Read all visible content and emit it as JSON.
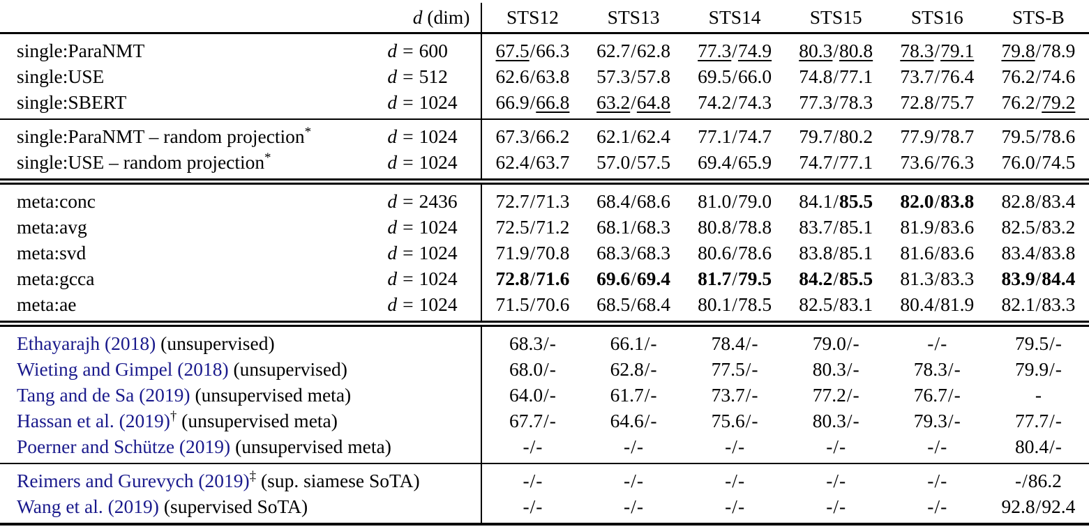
{
  "colors": {
    "citation_link": "#1a1a8c",
    "text": "#000000"
  },
  "header": {
    "dim_var": "d",
    "dim_rest": " (dim)",
    "dim_eq": "=",
    "sep": "/",
    "columns": [
      "STS12",
      "STS13",
      "STS14",
      "STS15",
      "STS16",
      "STS-B"
    ]
  },
  "groups": [
    {
      "name": "group-single-models",
      "rule": "none",
      "rows": [
        {
          "label": "single:ParaNMT",
          "dim": "600",
          "cells": [
            {
              "a": "67.5",
              "b": "66.3",
              "ua": true
            },
            {
              "a": "62.7",
              "b": "62.8"
            },
            {
              "a": "77.3",
              "b": "74.9",
              "ua": true,
              "ub": true
            },
            {
              "a": "80.3",
              "b": "80.8",
              "ua": true,
              "ub": true
            },
            {
              "a": "78.3",
              "b": "79.1",
              "ua": true,
              "ub": true
            },
            {
              "a": "79.8",
              "b": "78.9",
              "ua": true
            }
          ]
        },
        {
          "label": "single:USE",
          "dim": "512",
          "cells": [
            {
              "a": "62.6",
              "b": "63.8"
            },
            {
              "a": "57.3",
              "b": "57.8"
            },
            {
              "a": "69.5",
              "b": "66.0"
            },
            {
              "a": "74.8",
              "b": "77.1"
            },
            {
              "a": "73.7",
              "b": "76.4"
            },
            {
              "a": "76.2",
              "b": "74.6"
            }
          ]
        },
        {
          "label": "single:SBERT",
          "dim": "1024",
          "cells": [
            {
              "a": "66.9",
              "b": "66.8",
              "ub": true
            },
            {
              "a": "63.2",
              "b": "64.8",
              "ua": true,
              "ub": true
            },
            {
              "a": "74.2",
              "b": "74.3"
            },
            {
              "a": "77.3",
              "b": "78.3"
            },
            {
              "a": "72.8",
              "b": "75.7"
            },
            {
              "a": "76.2",
              "b": "79.2",
              "ub": true
            }
          ]
        }
      ]
    },
    {
      "name": "group-random-projection",
      "rule": "single",
      "rows": [
        {
          "label": "single:ParaNMT – random projection",
          "sup": "*",
          "dim": "1024",
          "cells": [
            {
              "a": "67.3",
              "b": "66.2"
            },
            {
              "a": "62.1",
              "b": "62.4"
            },
            {
              "a": "77.1",
              "b": "74.7"
            },
            {
              "a": "79.7",
              "b": "80.2"
            },
            {
              "a": "77.9",
              "b": "78.7"
            },
            {
              "a": "79.5",
              "b": "78.6"
            }
          ]
        },
        {
          "label": "single:USE – random projection",
          "sup": "*",
          "dim": "1024",
          "cells": [
            {
              "a": "62.4",
              "b": "63.7"
            },
            {
              "a": "57.0",
              "b": "57.5"
            },
            {
              "a": "69.4",
              "b": "65.9"
            },
            {
              "a": "74.7",
              "b": "77.1"
            },
            {
              "a": "73.6",
              "b": "76.3"
            },
            {
              "a": "76.0",
              "b": "74.5"
            }
          ]
        }
      ]
    },
    {
      "name": "group-meta-models",
      "rule": "double",
      "rows": [
        {
          "label": "meta:conc",
          "dim": "2436",
          "cells": [
            {
              "a": "72.7",
              "b": "71.3"
            },
            {
              "a": "68.4",
              "b": "68.6"
            },
            {
              "a": "81.0",
              "b": "79.0"
            },
            {
              "a": "84.1",
              "b": "85.5",
              "bb": true
            },
            {
              "a": "82.0",
              "b": "83.8",
              "ba": true,
              "bb": true
            },
            {
              "a": "82.8",
              "b": "83.4"
            }
          ]
        },
        {
          "label": "meta:avg",
          "dim": "1024",
          "cells": [
            {
              "a": "72.5",
              "b": "71.2"
            },
            {
              "a": "68.1",
              "b": "68.3"
            },
            {
              "a": "80.8",
              "b": "78.8"
            },
            {
              "a": "83.7",
              "b": "85.1"
            },
            {
              "a": "81.9",
              "b": "83.6"
            },
            {
              "a": "82.5",
              "b": "83.2"
            }
          ]
        },
        {
          "label": "meta:svd",
          "dim": "1024",
          "cells": [
            {
              "a": "71.9",
              "b": "70.8"
            },
            {
              "a": "68.3",
              "b": "68.3"
            },
            {
              "a": "80.6",
              "b": "78.6"
            },
            {
              "a": "83.8",
              "b": "85.1"
            },
            {
              "a": "81.6",
              "b": "83.6"
            },
            {
              "a": "83.4",
              "b": "83.8"
            }
          ]
        },
        {
          "label": "meta:gcca",
          "dim": "1024",
          "cells": [
            {
              "a": "72.8",
              "b": "71.6",
              "ba": true,
              "bb": true
            },
            {
              "a": "69.6",
              "b": "69.4",
              "ba": true,
              "bb": true
            },
            {
              "a": "81.7",
              "b": "79.5",
              "ba": true,
              "bb": true
            },
            {
              "a": "84.2",
              "b": "85.5",
              "ba": true,
              "bb": true
            },
            {
              "a": "81.3",
              "b": "83.3"
            },
            {
              "a": "83.9",
              "b": "84.4",
              "ba": true,
              "bb": true
            }
          ]
        },
        {
          "label": "meta:ae",
          "dim": "1024",
          "cells": [
            {
              "a": "71.5",
              "b": "70.6"
            },
            {
              "a": "68.5",
              "b": "68.4"
            },
            {
              "a": "80.1",
              "b": "78.5"
            },
            {
              "a": "82.5",
              "b": "83.1"
            },
            {
              "a": "80.4",
              "b": "81.9"
            },
            {
              "a": "82.1",
              "b": "83.3"
            }
          ]
        }
      ]
    },
    {
      "name": "group-unsupervised-baselines",
      "rule": "double",
      "rows": [
        {
          "cite": "Ethayarajh (2018)",
          "note": " (unsupervised)",
          "cells": [
            {
              "a": "68.3",
              "b": "-"
            },
            {
              "a": "66.1",
              "b": "-"
            },
            {
              "a": "78.4",
              "b": "-"
            },
            {
              "a": "79.0",
              "b": "-"
            },
            {
              "a": "-",
              "b": "-"
            },
            {
              "a": "79.5",
              "b": "-"
            }
          ]
        },
        {
          "cite": "Wieting and Gimpel (2018)",
          "note": " (unsupervised)",
          "cells": [
            {
              "a": "68.0",
              "b": "-"
            },
            {
              "a": "62.8",
              "b": "-"
            },
            {
              "a": "77.5",
              "b": "-"
            },
            {
              "a": "80.3",
              "b": "-"
            },
            {
              "a": "78.3",
              "b": "-"
            },
            {
              "a": "79.9",
              "b": "-"
            }
          ]
        },
        {
          "cite": "Tang and de Sa (2019)",
          "note": " (unsupervised meta)",
          "cells": [
            {
              "a": "64.0",
              "b": "-"
            },
            {
              "a": "61.7",
              "b": "-"
            },
            {
              "a": "73.7",
              "b": "-"
            },
            {
              "a": "77.2",
              "b": "-"
            },
            {
              "a": "76.7",
              "b": "-"
            },
            {
              "single": "-"
            }
          ]
        },
        {
          "cite": "Hassan et al. (2019)",
          "sup": "†",
          "note": " (unsupervised meta)",
          "cells": [
            {
              "a": "67.7",
              "b": "-"
            },
            {
              "a": "64.6",
              "b": "-"
            },
            {
              "a": "75.6",
              "b": "-"
            },
            {
              "a": "80.3",
              "b": "-"
            },
            {
              "a": "79.3",
              "b": "-"
            },
            {
              "a": "77.7",
              "b": "-"
            }
          ]
        },
        {
          "cite": "Poerner and Schütze (2019)",
          "note": " (unsupervised meta)",
          "cells": [
            {
              "a": "-",
              "b": "-"
            },
            {
              "a": "-",
              "b": "-"
            },
            {
              "a": "-",
              "b": "-"
            },
            {
              "a": "-",
              "b": "-"
            },
            {
              "a": "-",
              "b": "-"
            },
            {
              "a": "80.4",
              "b": "-"
            }
          ]
        }
      ]
    },
    {
      "name": "group-supervised-sota",
      "rule": "single",
      "rows": [
        {
          "cite": "Reimers and Gurevych (2019)",
          "sup": "‡",
          "note": " (sup. siamese SoTA)",
          "cells": [
            {
              "a": "-",
              "b": "-"
            },
            {
              "a": "-",
              "b": "-"
            },
            {
              "a": "-",
              "b": "-"
            },
            {
              "a": "-",
              "b": "-"
            },
            {
              "a": "-",
              "b": "-"
            },
            {
              "a": "-",
              "b": "86.2"
            }
          ]
        },
        {
          "cite": "Wang et al. (2019)",
          "note": " (supervised SoTA)",
          "cells": [
            {
              "a": "-",
              "b": "-"
            },
            {
              "a": "-",
              "b": "-"
            },
            {
              "a": "-",
              "b": "-"
            },
            {
              "a": "-",
              "b": "-"
            },
            {
              "a": "-",
              "b": "-"
            },
            {
              "a": "92.8",
              "b": "92.4"
            }
          ]
        }
      ]
    }
  ]
}
